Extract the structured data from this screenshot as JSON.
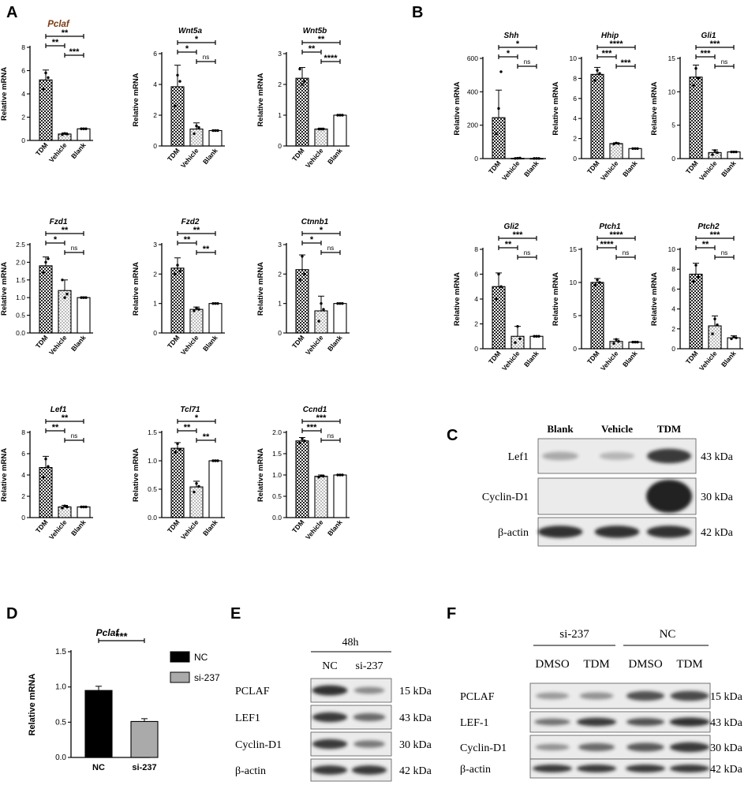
{
  "panel_letters": [
    "A",
    "B",
    "C",
    "D",
    "E",
    "F"
  ],
  "colors": {
    "axis": "#000000",
    "title_pclaf": "#7a3b12",
    "nc_bar": "#000000",
    "si_bar": "#aaaaaa",
    "blot_bg": "#ebebeb",
    "band": "#222222"
  },
  "chart_data": [
    {
      "id": "pclaf-a",
      "panel": "A",
      "type": "bar",
      "title": "Pclaf",
      "ylabel": "Relative mRNA",
      "categories": [
        "TDM",
        "Vehicle",
        "Blank"
      ],
      "values": [
        5.2,
        0.55,
        1.0
      ],
      "errors": [
        0.85,
        0.1,
        0.05
      ],
      "ylim": [
        0,
        8
      ],
      "yticks": [
        0,
        2,
        4,
        6,
        8
      ],
      "fills": [
        "check",
        "dots",
        "white"
      ],
      "points": [
        [
          4.4,
          5.8,
          5.4
        ],
        [
          0.5,
          0.6,
          0.55
        ],
        [
          1,
          1,
          1
        ]
      ],
      "sig": [
        {
          "a": 0,
          "b": 1,
          "label": "**"
        },
        {
          "a": 0,
          "b": 2,
          "label": "**"
        },
        {
          "a": 1,
          "b": 2,
          "label": "***"
        }
      ]
    },
    {
      "id": "wnt5a",
      "panel": "A",
      "type": "bar",
      "title": "Wnt5a",
      "ylabel": "Relative mRNA",
      "categories": [
        "TDM",
        "Vehicle",
        "Blank"
      ],
      "values": [
        3.85,
        1.1,
        1.0
      ],
      "errors": [
        1.4,
        0.4,
        0.03
      ],
      "ylim": [
        0,
        6
      ],
      "yticks": [
        0,
        2,
        4,
        6
      ],
      "fills": [
        "check",
        "dots",
        "white"
      ],
      "points": [
        [
          2.6,
          4.6,
          4.2
        ],
        [
          0.8,
          1.3,
          1.2
        ],
        [
          1,
          1,
          1
        ]
      ],
      "sig": [
        {
          "a": 0,
          "b": 1,
          "label": "*"
        },
        {
          "a": 0,
          "b": 2,
          "label": "*"
        },
        {
          "a": 1,
          "b": 2,
          "label": "ns"
        }
      ]
    },
    {
      "id": "wnt5b",
      "panel": "A",
      "type": "bar",
      "title": "Wnt5b",
      "ylabel": "Relative mRNA",
      "categories": [
        "TDM",
        "Vehicle",
        "Blank"
      ],
      "values": [
        2.2,
        0.55,
        1.0
      ],
      "errors": [
        0.35,
        0.03,
        0.02
      ],
      "ylim": [
        0,
        3
      ],
      "yticks": [
        0,
        1,
        2,
        3
      ],
      "fills": [
        "check",
        "dots",
        "white"
      ],
      "points": [
        [
          2.5,
          2.0,
          2.1
        ],
        [
          0.55,
          0.55,
          0.55
        ],
        [
          1,
          1,
          1
        ]
      ],
      "sig": [
        {
          "a": 0,
          "b": 1,
          "label": "**"
        },
        {
          "a": 0,
          "b": 2,
          "label": "**"
        },
        {
          "a": 1,
          "b": 2,
          "label": "****"
        }
      ]
    },
    {
      "id": "fzd1",
      "panel": "A",
      "type": "bar",
      "title": "Fzd1",
      "ylabel": "Relative mRNA",
      "categories": [
        "TDM",
        "Vehicle",
        "Blank"
      ],
      "values": [
        1.9,
        1.2,
        1.0
      ],
      "errors": [
        0.25,
        0.3,
        0.02
      ],
      "ylim": [
        0,
        2.5
      ],
      "yticks": [
        0,
        0.5,
        1.0,
        1.5,
        2.0,
        2.5
      ],
      "fills": [
        "check",
        "dots",
        "white"
      ],
      "points": [
        [
          1.7,
          2.0,
          2.1
        ],
        [
          1.5,
          1.0,
          1.1
        ],
        [
          1,
          1,
          1
        ]
      ],
      "sig": [
        {
          "a": 0,
          "b": 1,
          "label": "*"
        },
        {
          "a": 0,
          "b": 2,
          "label": "**"
        },
        {
          "a": 1,
          "b": 2,
          "label": "ns"
        }
      ]
    },
    {
      "id": "fzd2",
      "panel": "A",
      "type": "bar",
      "title": "Fzd2",
      "ylabel": "Relative mRNA",
      "categories": [
        "TDM",
        "Vehicle",
        "Blank"
      ],
      "values": [
        2.2,
        0.8,
        1.0
      ],
      "errors": [
        0.35,
        0.08,
        0.02
      ],
      "ylim": [
        0,
        3
      ],
      "yticks": [
        0,
        1,
        2,
        3
      ],
      "fills": [
        "check",
        "dots",
        "white"
      ],
      "points": [
        [
          2.0,
          2.3,
          2.1
        ],
        [
          0.75,
          0.85,
          0.8
        ],
        [
          1,
          1,
          1
        ]
      ],
      "sig": [
        {
          "a": 0,
          "b": 1,
          "label": "**"
        },
        {
          "a": 0,
          "b": 2,
          "label": "**"
        },
        {
          "a": 1,
          "b": 2,
          "label": "**"
        }
      ]
    },
    {
      "id": "ctnnb1",
      "panel": "A",
      "type": "bar",
      "title": "Ctnnb1",
      "ylabel": "Relative mRNA",
      "categories": [
        "TDM",
        "Vehicle",
        "Blank"
      ],
      "values": [
        2.15,
        0.75,
        1.0
      ],
      "errors": [
        0.5,
        0.5,
        0.02
      ],
      "ylim": [
        0,
        3
      ],
      "yticks": [
        0,
        1,
        2,
        3
      ],
      "fills": [
        "check",
        "dots",
        "white"
      ],
      "points": [
        [
          1.8,
          2.6,
          2.0
        ],
        [
          0.4,
          1.0,
          0.8
        ],
        [
          1,
          1,
          1
        ]
      ],
      "sig": [
        {
          "a": 0,
          "b": 1,
          "label": "*"
        },
        {
          "a": 0,
          "b": 2,
          "label": "*"
        },
        {
          "a": 1,
          "b": 2,
          "label": "ns"
        }
      ]
    },
    {
      "id": "lef1",
      "panel": "A",
      "type": "bar",
      "title": "Lef1",
      "ylabel": "Relative mRNA",
      "categories": [
        "TDM",
        "Vehicle",
        "Blank"
      ],
      "values": [
        4.7,
        1.0,
        1.0
      ],
      "errors": [
        1.05,
        0.15,
        0.03
      ],
      "ylim": [
        0,
        8
      ],
      "yticks": [
        0,
        2,
        4,
        6,
        8
      ],
      "fills": [
        "check",
        "dots",
        "white"
      ],
      "points": [
        [
          3.8,
          5.5,
          4.8
        ],
        [
          0.9,
          1.1,
          1.0
        ],
        [
          1,
          1,
          1
        ]
      ],
      "sig": [
        {
          "a": 0,
          "b": 1,
          "label": "**"
        },
        {
          "a": 0,
          "b": 2,
          "label": "**"
        },
        {
          "a": 1,
          "b": 2,
          "label": "ns"
        }
      ]
    },
    {
      "id": "tcl71",
      "panel": "A",
      "type": "bar",
      "title": "Tcl71",
      "ylabel": "Relative mRNA",
      "categories": [
        "TDM",
        "Vehicle",
        "Blank"
      ],
      "values": [
        1.22,
        0.54,
        1.0
      ],
      "errors": [
        0.1,
        0.1,
        0.01
      ],
      "ylim": [
        0,
        1.5
      ],
      "yticks": [
        0,
        0.5,
        1.0,
        1.5
      ],
      "fills": [
        "check",
        "dots",
        "white"
      ],
      "points": [
        [
          1.15,
          1.3,
          1.2
        ],
        [
          0.45,
          0.6,
          0.55
        ],
        [
          1,
          1,
          1
        ]
      ],
      "sig": [
        {
          "a": 0,
          "b": 1,
          "label": "**"
        },
        {
          "a": 0,
          "b": 2,
          "label": "*"
        },
        {
          "a": 1,
          "b": 2,
          "label": "**"
        }
      ]
    },
    {
      "id": "ccnd1",
      "panel": "A",
      "type": "bar",
      "title": "Ccnd1",
      "ylabel": "Relative mRNA",
      "categories": [
        "TDM",
        "Vehicle",
        "Blank"
      ],
      "values": [
        1.8,
        0.97,
        1.0
      ],
      "errors": [
        0.08,
        0.03,
        0.01
      ],
      "ylim": [
        0,
        2.0
      ],
      "yticks": [
        0,
        0.5,
        1.0,
        1.5,
        2.0
      ],
      "fills": [
        "check",
        "dots",
        "white"
      ],
      "points": [
        [
          1.75,
          1.85,
          1.8
        ],
        [
          0.95,
          0.98,
          0.97
        ],
        [
          1,
          1,
          1
        ]
      ],
      "sig": [
        {
          "a": 0,
          "b": 1,
          "label": "***"
        },
        {
          "a": 0,
          "b": 2,
          "label": "***"
        },
        {
          "a": 1,
          "b": 2,
          "label": "ns"
        }
      ]
    },
    {
      "id": "shh",
      "panel": "B",
      "type": "bar",
      "title": "Shh",
      "ylabel": "Relative mRNA",
      "categories": [
        "TDM",
        "Vehicle",
        "Blank"
      ],
      "values": [
        245,
        2,
        1
      ],
      "errors": [
        165,
        2,
        0.5
      ],
      "ylim": [
        0,
        600
      ],
      "yticks": [
        0,
        200,
        400,
        600
      ],
      "fills": [
        "check",
        "dots",
        "white"
      ],
      "points": [
        [
          150,
          300,
          520
        ],
        [
          1,
          2,
          3
        ],
        [
          1,
          1,
          1
        ]
      ],
      "sig": [
        {
          "a": 0,
          "b": 1,
          "label": "*"
        },
        {
          "a": 0,
          "b": 2,
          "label": "*"
        },
        {
          "a": 1,
          "b": 2,
          "label": "ns"
        }
      ]
    },
    {
      "id": "hhip",
      "panel": "B",
      "type": "bar",
      "title": "Hhip",
      "ylabel": "Relative mRNA",
      "categories": [
        "TDM",
        "Vehicle",
        "Blank"
      ],
      "values": [
        8.4,
        1.5,
        1.0
      ],
      "errors": [
        0.7,
        0.08,
        0.03
      ],
      "ylim": [
        0,
        10
      ],
      "yticks": [
        0,
        2,
        4,
        6,
        8,
        10
      ],
      "fills": [
        "check",
        "dots",
        "white"
      ],
      "points": [
        [
          7.8,
          8.8,
          8.5
        ],
        [
          1.45,
          1.55,
          1.5
        ],
        [
          1,
          1,
          1
        ]
      ],
      "sig": [
        {
          "a": 0,
          "b": 1,
          "label": "***"
        },
        {
          "a": 0,
          "b": 2,
          "label": "****"
        },
        {
          "a": 1,
          "b": 2,
          "label": "***"
        }
      ]
    },
    {
      "id": "gli1",
      "panel": "B",
      "type": "bar",
      "title": "Gli1",
      "ylabel": "Relative mRNA",
      "categories": [
        "TDM",
        "Vehicle",
        "Blank"
      ],
      "values": [
        12.2,
        0.9,
        1.0
      ],
      "errors": [
        1.8,
        0.4,
        0.03
      ],
      "ylim": [
        0,
        15
      ],
      "yticks": [
        0,
        5,
        10,
        15
      ],
      "fills": [
        "check",
        "dots",
        "white"
      ],
      "points": [
        [
          11.0,
          13.5,
          12.0
        ],
        [
          0.6,
          1.2,
          0.9
        ],
        [
          1,
          1,
          1
        ]
      ],
      "sig": [
        {
          "a": 0,
          "b": 1,
          "label": "***"
        },
        {
          "a": 0,
          "b": 2,
          "label": "***"
        },
        {
          "a": 1,
          "b": 2,
          "label": "ns"
        }
      ]
    },
    {
      "id": "gli2",
      "panel": "B",
      "type": "bar",
      "title": "Gli2",
      "ylabel": "Relative mRNA",
      "categories": [
        "TDM",
        "Vehicle",
        "Blank"
      ],
      "values": [
        5.0,
        1.0,
        1.0
      ],
      "errors": [
        1.1,
        0.8,
        0.03
      ],
      "ylim": [
        0,
        8
      ],
      "yticks": [
        0,
        2,
        4,
        6,
        8
      ],
      "fills": [
        "check",
        "dots",
        "white"
      ],
      "points": [
        [
          4.0,
          6.0,
          5.0
        ],
        [
          0.5,
          1.8,
          0.8
        ],
        [
          1,
          1,
          1
        ]
      ],
      "sig": [
        {
          "a": 0,
          "b": 1,
          "label": "**"
        },
        {
          "a": 0,
          "b": 2,
          "label": "***"
        },
        {
          "a": 1,
          "b": 2,
          "label": "ns"
        }
      ]
    },
    {
      "id": "ptch1",
      "panel": "B",
      "type": "bar",
      "title": "Ptch1",
      "ylabel": "Relative mRNA",
      "categories": [
        "TDM",
        "Vehicle",
        "Blank"
      ],
      "values": [
        10.0,
        1.1,
        1.0
      ],
      "errors": [
        0.6,
        0.35,
        0.03
      ],
      "ylim": [
        0,
        15
      ],
      "yticks": [
        0,
        5,
        10,
        15
      ],
      "fills": [
        "check",
        "dots",
        "white"
      ],
      "points": [
        [
          9.6,
          10.4,
          10.0
        ],
        [
          0.8,
          1.4,
          1.1
        ],
        [
          1,
          1,
          1
        ]
      ],
      "sig": [
        {
          "a": 0,
          "b": 1,
          "label": "****"
        },
        {
          "a": 0,
          "b": 2,
          "label": "****"
        },
        {
          "a": 1,
          "b": 2,
          "label": "ns"
        }
      ]
    },
    {
      "id": "ptch2",
      "panel": "B",
      "type": "bar",
      "title": "Ptch2",
      "ylabel": "Relative mRNA",
      "categories": [
        "TDM",
        "Vehicle",
        "Blank"
      ],
      "values": [
        7.5,
        2.3,
        1.1
      ],
      "errors": [
        1.1,
        1.0,
        0.2
      ],
      "ylim": [
        0,
        10
      ],
      "yticks": [
        0,
        2,
        4,
        6,
        8,
        10
      ],
      "fills": [
        "check",
        "dots",
        "white"
      ],
      "points": [
        [
          6.8,
          8.4,
          7.2
        ],
        [
          1.5,
          3.0,
          2.4
        ],
        [
          1.0,
          1.2,
          1.1
        ]
      ],
      "sig": [
        {
          "a": 0,
          "b": 1,
          "label": "**"
        },
        {
          "a": 0,
          "b": 2,
          "label": "***"
        },
        {
          "a": 1,
          "b": 2,
          "label": "ns"
        }
      ]
    },
    {
      "id": "pclaf-d",
      "panel": "D",
      "type": "bar",
      "title": "Pclaf",
      "ylabel": "Relative mRNA",
      "categories": [
        "NC",
        "si-237"
      ],
      "values": [
        0.95,
        0.51
      ],
      "errors": [
        0.06,
        0.04
      ],
      "ylim": [
        0,
        1.5
      ],
      "yticks": [
        0,
        0.5,
        1.0,
        1.5
      ],
      "fills": [
        "black",
        "gray"
      ],
      "points": [],
      "sig": [
        {
          "a": 0,
          "b": 1,
          "label": "***"
        }
      ],
      "legend": {
        "placement": "right",
        "entries": [
          "NC",
          "si-237"
        ]
      }
    }
  ],
  "blots": {
    "C": {
      "lanes": [
        "Blank",
        "Vehicle",
        "TDM"
      ],
      "rows": [
        {
          "label": "Lef1",
          "kda": "43 kDa",
          "intensity": [
            0.15,
            0.08,
            0.85
          ]
        },
        {
          "label": "Cyclin-D1",
          "kda": "30 kDa",
          "intensity": [
            0.0,
            0.0,
            1.0
          ]
        },
        {
          "label": "β-actin",
          "kda": "42 kDa",
          "intensity": [
            0.9,
            0.9,
            0.9
          ]
        }
      ]
    },
    "E": {
      "header": "48h",
      "lanes": [
        "NC",
        "si-237"
      ],
      "rows": [
        {
          "label": "PCLAF",
          "kda": "15 kDa",
          "intensity": [
            0.9,
            0.35
          ]
        },
        {
          "label": "LEF1",
          "kda": "43 kDa",
          "intensity": [
            0.85,
            0.55
          ]
        },
        {
          "label": "Cyclin-D1",
          "kda": "30 kDa",
          "intensity": [
            0.85,
            0.45
          ]
        },
        {
          "label": "β-actin",
          "kda": "42 kDa",
          "intensity": [
            0.85,
            0.85
          ]
        }
      ]
    },
    "F": {
      "groups": [
        "si-237",
        "NC"
      ],
      "lanes": [
        "DMSO",
        "TDM",
        "DMSO",
        "TDM"
      ],
      "rows": [
        {
          "label": "PCLAF",
          "kda": "15 kDa",
          "intensity": [
            0.25,
            0.3,
            0.7,
            0.75
          ]
        },
        {
          "label": "LEF-1",
          "kda": "43 kDa",
          "intensity": [
            0.5,
            0.85,
            0.7,
            0.9
          ]
        },
        {
          "label": "Cyclin-D1",
          "kda": "30 kDa",
          "intensity": [
            0.3,
            0.55,
            0.65,
            0.85
          ]
        },
        {
          "label": "β-actin",
          "kda": "42 kDa",
          "intensity": [
            0.85,
            0.85,
            0.85,
            0.85
          ]
        }
      ]
    }
  }
}
